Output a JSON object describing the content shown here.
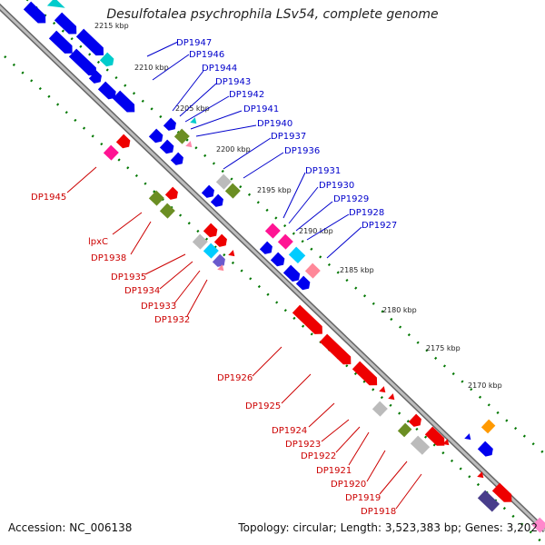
{
  "title": "Desulfotalea psychrophila LSv54, complete genome",
  "footer": {
    "accession": "Accession: NC_006138",
    "summary": "Topology: circular; Length: 3,523,383 bp; Genes: 3,202"
  },
  "colors": {
    "forward_genes": "#0000ee",
    "reverse_genes": "#ee0000",
    "tick_dots": "#007700",
    "backbone": "#888888",
    "blue_label": "#0000cc",
    "red_label": "#cc0000"
  },
  "ticks": [
    {
      "label": "2215 kbp"
    },
    {
      "label": "2210 kbp"
    },
    {
      "label": "2205 kbp"
    },
    {
      "label": "2200 kbp"
    },
    {
      "label": "2195 kbp"
    },
    {
      "label": "2190 kbp"
    },
    {
      "label": "2185 kbp"
    },
    {
      "label": "2180 kbp"
    },
    {
      "label": "2175 kbp"
    },
    {
      "label": "2170 kbp"
    }
  ],
  "forward_labels": [
    "DP1947",
    "DP1946",
    "DP1944",
    "DP1943",
    "DP1942",
    "DP1941",
    "DP1940",
    "DP1937",
    "DP1936",
    "DP1931",
    "DP1930",
    "DP1929",
    "DP1928",
    "DP1927"
  ],
  "reverse_labels": [
    "DP1945",
    "lpxC",
    "DP1938",
    "DP1935",
    "DP1934",
    "DP1933",
    "DP1932",
    "DP1926",
    "DP1925",
    "DP1924",
    "DP1923",
    "DP1922",
    "DP1921",
    "DP1920",
    "DP1919",
    "DP1918"
  ]
}
